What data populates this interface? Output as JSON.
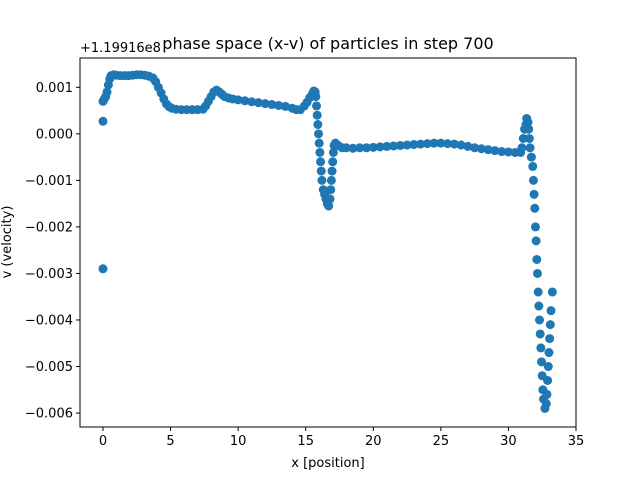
{
  "chart_data": {
    "type": "scatter",
    "title": "phase space (x-v) of particles in step 700",
    "xlabel": "x [position]",
    "ylabel": "v (velocity)",
    "offset_text": "+1.19916e8",
    "xlim": [
      -1.7,
      35.0
    ],
    "ylim": [
      -0.0063,
      0.00163
    ],
    "xticks": [
      0,
      5,
      10,
      15,
      20,
      25,
      30,
      35
    ],
    "xtick_labels": [
      "0",
      "5",
      "10",
      "15",
      "20",
      "25",
      "30",
      "35"
    ],
    "yticks": [
      0.001,
      0.0,
      -0.001,
      -0.002,
      -0.003,
      -0.004,
      -0.005,
      -0.006
    ],
    "ytick_labels": [
      "0.001",
      "0.000",
      "−0.001",
      "−0.002",
      "−0.003",
      "−0.004",
      "−0.005",
      "−0.006"
    ],
    "grid": false,
    "series": [
      {
        "color": "#1f77b4",
        "points": [
          [
            0.0,
            0.00027
          ],
          [
            0.0,
            -0.0029
          ],
          [
            0.0,
            0.0007
          ],
          [
            0.1,
            0.00075
          ],
          [
            0.2,
            0.0008
          ],
          [
            0.3,
            0.0009
          ],
          [
            0.4,
            0.00105
          ],
          [
            0.5,
            0.00118
          ],
          [
            0.6,
            0.00125
          ],
          [
            0.8,
            0.00127
          ],
          [
            1.0,
            0.00126
          ],
          [
            1.3,
            0.00125
          ],
          [
            1.6,
            0.00125
          ],
          [
            1.9,
            0.00125
          ],
          [
            2.2,
            0.00126
          ],
          [
            2.5,
            0.00127
          ],
          [
            2.8,
            0.00127
          ],
          [
            3.1,
            0.00126
          ],
          [
            3.4,
            0.00124
          ],
          [
            3.7,
            0.0012
          ],
          [
            3.9,
            0.00112
          ],
          [
            4.1,
            0.001
          ],
          [
            4.3,
            0.00088
          ],
          [
            4.5,
            0.00075
          ],
          [
            4.7,
            0.00064
          ],
          [
            4.9,
            0.00058
          ],
          [
            5.1,
            0.00055
          ],
          [
            5.4,
            0.00053
          ],
          [
            5.8,
            0.00052
          ],
          [
            6.2,
            0.00052
          ],
          [
            6.6,
            0.00052
          ],
          [
            7.0,
            0.00052
          ],
          [
            7.4,
            0.00053
          ],
          [
            7.6,
            0.0006
          ],
          [
            7.8,
            0.0007
          ],
          [
            8.0,
            0.0008
          ],
          [
            8.2,
            0.0009
          ],
          [
            8.4,
            0.00094
          ],
          [
            8.6,
            0.0009
          ],
          [
            8.8,
            0.00085
          ],
          [
            9.0,
            0.0008
          ],
          [
            9.3,
            0.00077
          ],
          [
            9.6,
            0.00075
          ],
          [
            10.0,
            0.00073
          ],
          [
            10.5,
            0.00071
          ],
          [
            11.0,
            0.00069
          ],
          [
            11.5,
            0.00067
          ],
          [
            12.0,
            0.00065
          ],
          [
            12.5,
            0.00063
          ],
          [
            13.0,
            0.00061
          ],
          [
            13.5,
            0.00059
          ],
          [
            14.0,
            0.00055
          ],
          [
            14.3,
            0.00052
          ],
          [
            14.6,
            0.00052
          ],
          [
            14.9,
            0.0006
          ],
          [
            15.1,
            0.00068
          ],
          [
            15.3,
            0.00078
          ],
          [
            15.5,
            0.00086
          ],
          [
            15.6,
            0.00092
          ],
          [
            15.7,
            0.0009
          ],
          [
            15.75,
            0.0008
          ],
          [
            15.8,
            0.0006
          ],
          [
            15.85,
            0.0004
          ],
          [
            15.9,
            0.0002
          ],
          [
            15.95,
            0.0
          ],
          [
            16.0,
            -0.0002
          ],
          [
            16.05,
            -0.0004
          ],
          [
            16.1,
            -0.0006
          ],
          [
            16.15,
            -0.0008
          ],
          [
            16.2,
            -0.001
          ],
          [
            16.3,
            -0.0012
          ],
          [
            16.4,
            -0.0013
          ],
          [
            16.5,
            -0.0014
          ],
          [
            16.6,
            -0.0015
          ],
          [
            16.7,
            -0.00155
          ],
          [
            16.8,
            -0.0014
          ],
          [
            16.85,
            -0.0012
          ],
          [
            16.9,
            -0.001
          ],
          [
            16.95,
            -0.0008
          ],
          [
            17.0,
            -0.0006
          ],
          [
            17.05,
            -0.0004
          ],
          [
            17.1,
            -0.00025
          ],
          [
            17.2,
            -0.0002
          ],
          [
            17.4,
            -0.00025
          ],
          [
            17.7,
            -0.0003
          ],
          [
            18.0,
            -0.0003
          ],
          [
            18.5,
            -0.00031
          ],
          [
            19.0,
            -0.0003
          ],
          [
            19.5,
            -0.0003
          ],
          [
            20.0,
            -0.00029
          ],
          [
            20.5,
            -0.00028
          ],
          [
            21.0,
            -0.00027
          ],
          [
            21.5,
            -0.00026
          ],
          [
            22.0,
            -0.00025
          ],
          [
            22.5,
            -0.00024
          ],
          [
            23.0,
            -0.00023
          ],
          [
            23.5,
            -0.00022
          ],
          [
            24.0,
            -0.00021
          ],
          [
            24.5,
            -0.0002
          ],
          [
            25.0,
            -0.0002
          ],
          [
            25.5,
            -0.00021
          ],
          [
            26.0,
            -0.00022
          ],
          [
            26.5,
            -0.00024
          ],
          [
            27.0,
            -0.00027
          ],
          [
            27.5,
            -0.0003
          ],
          [
            28.0,
            -0.00032
          ],
          [
            28.5,
            -0.00034
          ],
          [
            29.0,
            -0.00036
          ],
          [
            29.5,
            -0.00038
          ],
          [
            30.0,
            -0.00039
          ],
          [
            30.5,
            -0.0004
          ],
          [
            30.9,
            -0.0004
          ],
          [
            31.0,
            -0.0003
          ],
          [
            31.1,
            -0.0001
          ],
          [
            31.2,
            0.0001
          ],
          [
            31.3,
            0.0002
          ],
          [
            31.35,
            0.00033
          ],
          [
            31.45,
            0.00025
          ],
          [
            31.5,
            0.0001
          ],
          [
            31.55,
            -0.0001
          ],
          [
            31.6,
            -0.0003
          ],
          [
            31.7,
            -0.0005
          ],
          [
            31.8,
            -0.0007
          ],
          [
            31.85,
            -0.001
          ],
          [
            31.9,
            -0.0013
          ],
          [
            31.95,
            -0.0016
          ],
          [
            32.0,
            -0.002
          ],
          [
            32.05,
            -0.0023
          ],
          [
            32.1,
            -0.0027
          ],
          [
            32.15,
            -0.003
          ],
          [
            32.2,
            -0.0034
          ],
          [
            32.25,
            -0.0037
          ],
          [
            32.3,
            -0.004
          ],
          [
            32.35,
            -0.0043
          ],
          [
            32.4,
            -0.0046
          ],
          [
            32.45,
            -0.0049
          ],
          [
            32.5,
            -0.0052
          ],
          [
            32.55,
            -0.0055
          ],
          [
            32.6,
            -0.0057
          ],
          [
            32.7,
            -0.0059
          ],
          [
            32.8,
            -0.0058
          ],
          [
            32.85,
            -0.0056
          ],
          [
            32.9,
            -0.0053
          ],
          [
            32.95,
            -0.005
          ],
          [
            33.0,
            -0.0047
          ],
          [
            33.05,
            -0.0044
          ],
          [
            33.1,
            -0.0041
          ],
          [
            33.15,
            -0.0038
          ],
          [
            33.25,
            -0.0034
          ]
        ]
      }
    ]
  }
}
